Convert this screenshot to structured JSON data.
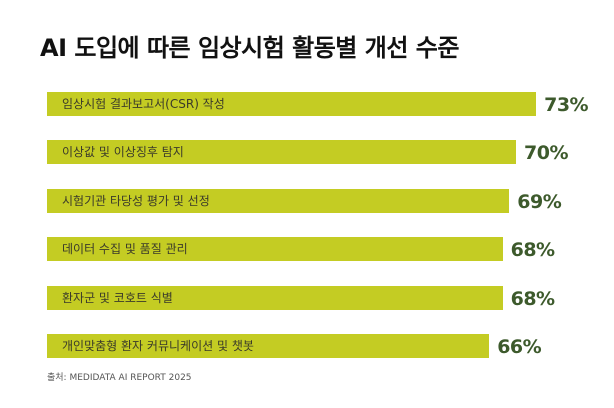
{
  "title": "AI 도입에 따른 임상시험 활동별 개선 수준",
  "source": "출처: MEDIDATA AI REPORT 2025",
  "colors": {
    "bar": "#c4cc23",
    "value_text": "#3d5a2c",
    "title": "#111111"
  },
  "chart_data": {
    "type": "bar",
    "orientation": "horizontal",
    "title": "AI 도입에 따른 임상시험 활동별 개선 수준",
    "categories": [
      "임상시험 결과보고서(CSR) 작성",
      "이상값 및 이상징후 탐지",
      "시험기관 타당성 평가 및 선정",
      "데이터 수집 및 품질 관리",
      "환자군 및 코호트 식별",
      "개인맞춤형 환자 커뮤니케이션 및 챗봇"
    ],
    "values": [
      73,
      70,
      69,
      68,
      68,
      66
    ],
    "value_labels": [
      "73%",
      "70%",
      "69%",
      "68%",
      "68%",
      "66%"
    ],
    "unit": "%",
    "xlim": [
      0,
      100
    ],
    "grid": false,
    "legend": "none"
  }
}
